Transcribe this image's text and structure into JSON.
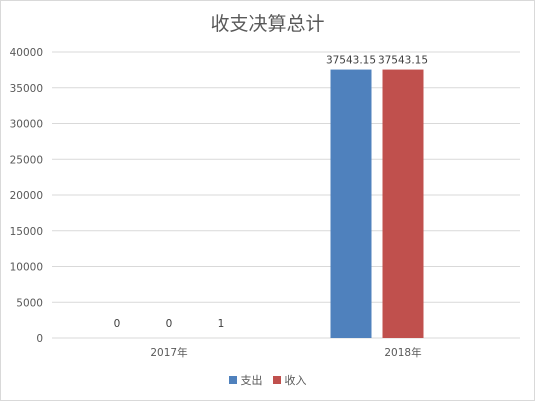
{
  "chart_data": {
    "type": "bar",
    "title": "收支决算总计",
    "categories": [
      "2017年",
      "2018年"
    ],
    "series": [
      {
        "name": "支出",
        "color": "#4f81bd",
        "values": [
          0,
          37543.15
        ],
        "labels": [
          "0",
          "37543.15"
        ]
      },
      {
        "name": "收入",
        "color": "#c0504d",
        "values": [
          0,
          37543.15
        ],
        "labels": [
          "0",
          "37543.15"
        ]
      },
      {
        "name": "",
        "color": "#9bbb59",
        "values": [
          1,
          null
        ],
        "labels": [
          "1",
          ""
        ]
      }
    ],
    "ylim": [
      0,
      40000
    ],
    "yticks": [
      0,
      5000,
      10000,
      15000,
      20000,
      25000,
      30000,
      35000,
      40000
    ],
    "grid": true,
    "legend_position": "bottom",
    "legend": [
      "支出",
      "收入"
    ]
  }
}
